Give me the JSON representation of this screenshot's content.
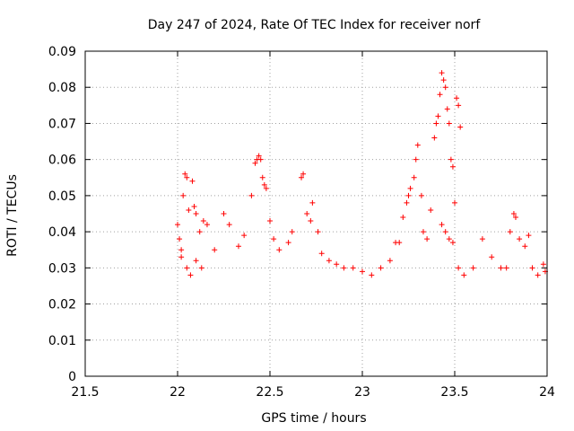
{
  "chart_data": {
    "type": "scatter",
    "title": "Day 247 of 2024, Rate Of TEC Index for receiver norf",
    "xlabel": "GPS time / hours",
    "ylabel": "ROTI / TECUs",
    "xlim": [
      21.5,
      24
    ],
    "ylim": [
      0,
      0.09
    ],
    "x_ticks": [
      21.5,
      22,
      22.5,
      23,
      23.5,
      24
    ],
    "x_tick_labels": [
      "21.5",
      "22",
      "22.5",
      "23",
      "23.5",
      "24"
    ],
    "y_ticks": [
      0,
      0.01,
      0.02,
      0.03,
      0.04,
      0.05,
      0.06,
      0.07,
      0.08,
      0.09
    ],
    "y_tick_labels": [
      "0",
      "0.01",
      "0.02",
      "0.03",
      "0.04",
      "0.05",
      "0.06",
      "0.07",
      "0.08",
      "0.09"
    ],
    "grid": true,
    "marker": "+",
    "series": [
      {
        "name": "ROTI",
        "color": "#ff0000",
        "points": [
          [
            22.0,
            0.042
          ],
          [
            22.01,
            0.038
          ],
          [
            22.02,
            0.035
          ],
          [
            22.03,
            0.05
          ],
          [
            22.04,
            0.056
          ],
          [
            22.05,
            0.055
          ],
          [
            22.06,
            0.046
          ],
          [
            22.08,
            0.054
          ],
          [
            22.09,
            0.047
          ],
          [
            22.1,
            0.045
          ],
          [
            22.12,
            0.04
          ],
          [
            22.14,
            0.043
          ],
          [
            22.16,
            0.042
          ],
          [
            22.02,
            0.033
          ],
          [
            22.05,
            0.03
          ],
          [
            22.07,
            0.028
          ],
          [
            22.1,
            0.032
          ],
          [
            22.13,
            0.03
          ],
          [
            22.2,
            0.035
          ],
          [
            22.25,
            0.045
          ],
          [
            22.28,
            0.042
          ],
          [
            22.33,
            0.036
          ],
          [
            22.36,
            0.039
          ],
          [
            22.4,
            0.05
          ],
          [
            22.42,
            0.059
          ],
          [
            22.43,
            0.06
          ],
          [
            22.44,
            0.061
          ],
          [
            22.45,
            0.06
          ],
          [
            22.46,
            0.055
          ],
          [
            22.47,
            0.053
          ],
          [
            22.48,
            0.052
          ],
          [
            22.5,
            0.043
          ],
          [
            22.52,
            0.038
          ],
          [
            22.55,
            0.035
          ],
          [
            22.6,
            0.037
          ],
          [
            22.62,
            0.04
          ],
          [
            22.67,
            0.055
          ],
          [
            22.68,
            0.056
          ],
          [
            22.7,
            0.045
          ],
          [
            22.72,
            0.043
          ],
          [
            22.73,
            0.048
          ],
          [
            22.76,
            0.04
          ],
          [
            22.78,
            0.034
          ],
          [
            22.82,
            0.032
          ],
          [
            22.86,
            0.031
          ],
          [
            22.9,
            0.03
          ],
          [
            22.95,
            0.03
          ],
          [
            23.0,
            0.029
          ],
          [
            23.05,
            0.028
          ],
          [
            23.1,
            0.03
          ],
          [
            23.15,
            0.032
          ],
          [
            23.18,
            0.037
          ],
          [
            23.2,
            0.037
          ],
          [
            23.22,
            0.044
          ],
          [
            23.24,
            0.048
          ],
          [
            23.25,
            0.05
          ],
          [
            23.26,
            0.052
          ],
          [
            23.28,
            0.055
          ],
          [
            23.29,
            0.06
          ],
          [
            23.3,
            0.064
          ],
          [
            23.32,
            0.05
          ],
          [
            23.33,
            0.04
          ],
          [
            23.35,
            0.038
          ],
          [
            23.37,
            0.046
          ],
          [
            23.39,
            0.066
          ],
          [
            23.4,
            0.07
          ],
          [
            23.41,
            0.072
          ],
          [
            23.42,
            0.078
          ],
          [
            23.43,
            0.084
          ],
          [
            23.44,
            0.082
          ],
          [
            23.45,
            0.08
          ],
          [
            23.46,
            0.074
          ],
          [
            23.47,
            0.07
          ],
          [
            23.48,
            0.06
          ],
          [
            23.49,
            0.058
          ],
          [
            23.5,
            0.048
          ],
          [
            23.51,
            0.077
          ],
          [
            23.52,
            0.075
          ],
          [
            23.53,
            0.069
          ],
          [
            23.43,
            0.042
          ],
          [
            23.45,
            0.04
          ],
          [
            23.47,
            0.038
          ],
          [
            23.49,
            0.037
          ],
          [
            23.52,
            0.03
          ],
          [
            23.55,
            0.028
          ],
          [
            23.6,
            0.03
          ],
          [
            23.65,
            0.038
          ],
          [
            23.7,
            0.033
          ],
          [
            23.75,
            0.03
          ],
          [
            23.78,
            0.03
          ],
          [
            23.8,
            0.04
          ],
          [
            23.82,
            0.045
          ],
          [
            23.83,
            0.044
          ],
          [
            23.85,
            0.038
          ],
          [
            23.88,
            0.036
          ],
          [
            23.9,
            0.039
          ],
          [
            23.92,
            0.03
          ],
          [
            23.95,
            0.028
          ],
          [
            23.98,
            0.031
          ],
          [
            23.99,
            0.029
          ]
        ]
      }
    ]
  }
}
